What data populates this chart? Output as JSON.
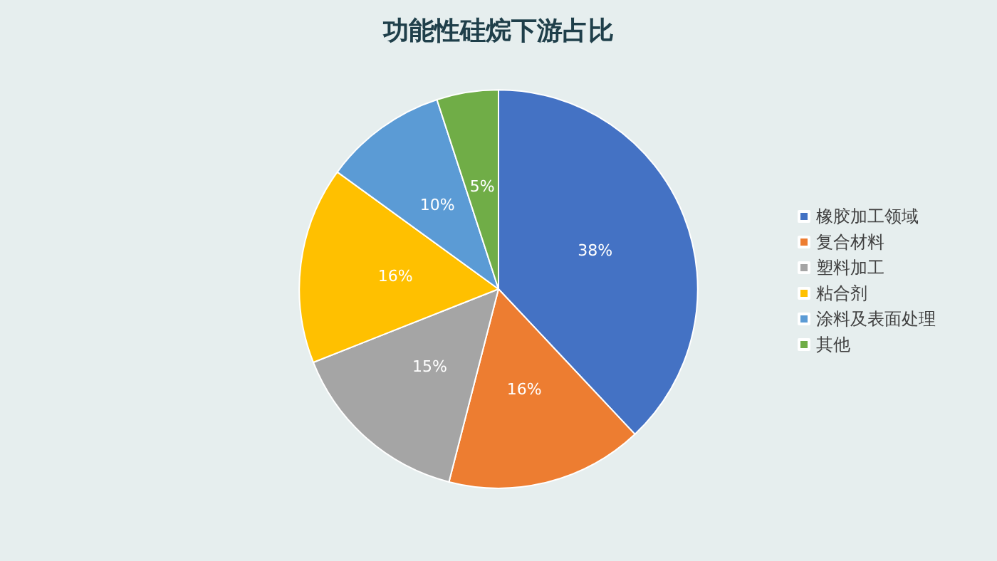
{
  "chart_data": {
    "type": "pie",
    "title": "功能性硅烷下游占比",
    "categories": [
      "橡胶加工领域",
      "复合材料",
      "塑料加工",
      "粘合剂",
      "涂料及表面处理",
      "其他"
    ],
    "values": [
      38,
      16,
      15,
      16,
      10,
      5
    ],
    "colors": [
      "#4472c4",
      "#ed7d31",
      "#a5a5a5",
      "#ffc000",
      "#5b9bd5",
      "#70ad47"
    ],
    "value_labels": [
      "38%",
      "16%",
      "15%",
      "16%",
      "10%",
      "5%"
    ],
    "legend": "right"
  }
}
